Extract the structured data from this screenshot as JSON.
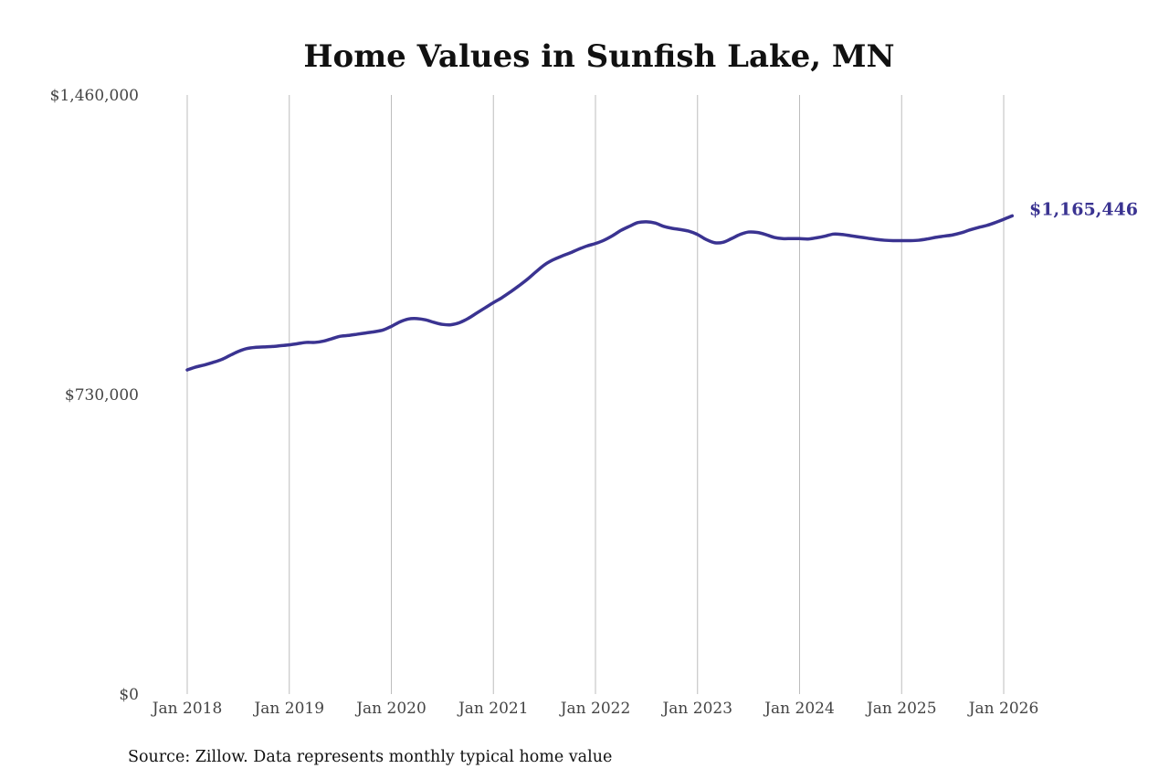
{
  "chart_data": {
    "type": "line",
    "title": "Home Values in Sunfish Lake, MN",
    "xlabel": "",
    "ylabel": "",
    "source": "Source: Zillow. Data represents monthly typical home value",
    "x_ticks": [
      "Jan 2018",
      "Jan 2019",
      "Jan 2020",
      "Jan 2021",
      "Jan 2022",
      "Jan 2023",
      "Jan 2024",
      "Jan 2025",
      "Jan 2026"
    ],
    "x_range": [
      "2018-01",
      "2026-01"
    ],
    "y_ticks": [
      0,
      730000,
      1460000
    ],
    "y_tick_labels": [
      "$0",
      "$730,000",
      "$1,460,000"
    ],
    "ylim": [
      0,
      1460000
    ],
    "grid": "vertical",
    "line_color": "#3a3391",
    "end_label": "$1,165,446",
    "series": [
      {
        "points": [
          [
            "2018-01",
            790000
          ],
          [
            "2018-02",
            797000
          ],
          [
            "2018-03",
            802000
          ],
          [
            "2018-04",
            808000
          ],
          [
            "2018-05",
            815000
          ],
          [
            "2018-06",
            825000
          ],
          [
            "2018-07",
            835000
          ],
          [
            "2018-08",
            842000
          ],
          [
            "2018-09",
            845000
          ],
          [
            "2018-10",
            846000
          ],
          [
            "2018-11",
            847000
          ],
          [
            "2018-12",
            849000
          ],
          [
            "2019-01",
            851000
          ],
          [
            "2019-02",
            854000
          ],
          [
            "2019-03",
            857000
          ],
          [
            "2019-04",
            857000
          ],
          [
            "2019-05",
            860000
          ],
          [
            "2019-06",
            866000
          ],
          [
            "2019-07",
            872000
          ],
          [
            "2019-08",
            874000
          ],
          [
            "2019-09",
            877000
          ],
          [
            "2019-10",
            880000
          ],
          [
            "2019-11",
            883000
          ],
          [
            "2019-12",
            887000
          ],
          [
            "2020-01",
            896000
          ],
          [
            "2020-02",
            907000
          ],
          [
            "2020-03",
            914000
          ],
          [
            "2020-04",
            915000
          ],
          [
            "2020-05",
            912000
          ],
          [
            "2020-06",
            906000
          ],
          [
            "2020-07",
            901000
          ],
          [
            "2020-08",
            900000
          ],
          [
            "2020-09",
            905000
          ],
          [
            "2020-10",
            915000
          ],
          [
            "2020-11",
            928000
          ],
          [
            "2020-12",
            941000
          ],
          [
            "2021-01",
            954000
          ],
          [
            "2021-02",
            966000
          ],
          [
            "2021-03",
            980000
          ],
          [
            "2021-04",
            995000
          ],
          [
            "2021-05",
            1011000
          ],
          [
            "2021-06",
            1029000
          ],
          [
            "2021-07",
            1046000
          ],
          [
            "2021-08",
            1058000
          ],
          [
            "2021-09",
            1067000
          ],
          [
            "2021-10",
            1075000
          ],
          [
            "2021-11",
            1084000
          ],
          [
            "2021-12",
            1092000
          ],
          [
            "2022-01",
            1098000
          ],
          [
            "2022-02",
            1106000
          ],
          [
            "2022-03",
            1117000
          ],
          [
            "2022-04",
            1130000
          ],
          [
            "2022-05",
            1140000
          ],
          [
            "2022-06",
            1149000
          ],
          [
            "2022-07",
            1151000
          ],
          [
            "2022-08",
            1148000
          ],
          [
            "2022-09",
            1140000
          ],
          [
            "2022-10",
            1135000
          ],
          [
            "2022-11",
            1132000
          ],
          [
            "2022-12",
            1128000
          ],
          [
            "2023-01",
            1120000
          ],
          [
            "2023-02",
            1108000
          ],
          [
            "2023-03",
            1100000
          ],
          [
            "2023-04",
            1101000
          ],
          [
            "2023-05",
            1110000
          ],
          [
            "2023-06",
            1120000
          ],
          [
            "2023-07",
            1126000
          ],
          [
            "2023-08",
            1125000
          ],
          [
            "2023-09",
            1120000
          ],
          [
            "2023-10",
            1113000
          ],
          [
            "2023-11",
            1110000
          ],
          [
            "2023-12",
            1110000
          ],
          [
            "2024-01",
            1110000
          ],
          [
            "2024-02",
            1109000
          ],
          [
            "2024-03",
            1112000
          ],
          [
            "2024-04",
            1116000
          ],
          [
            "2024-05",
            1121000
          ],
          [
            "2024-06",
            1120000
          ],
          [
            "2024-07",
            1117000
          ],
          [
            "2024-08",
            1114000
          ],
          [
            "2024-09",
            1111000
          ],
          [
            "2024-10",
            1108000
          ],
          [
            "2024-11",
            1106000
          ],
          [
            "2024-12",
            1105000
          ],
          [
            "2025-01",
            1105000
          ],
          [
            "2025-02",
            1105000
          ],
          [
            "2025-03",
            1106000
          ],
          [
            "2025-04",
            1109000
          ],
          [
            "2025-05",
            1113000
          ],
          [
            "2025-06",
            1116000
          ],
          [
            "2025-07",
            1119000
          ],
          [
            "2025-08",
            1124000
          ],
          [
            "2025-09",
            1131000
          ],
          [
            "2025-10",
            1137000
          ],
          [
            "2025-11",
            1142000
          ],
          [
            "2025-12",
            1149000
          ],
          [
            "2026-01",
            1157000
          ],
          [
            "2026-02",
            1165446
          ]
        ]
      }
    ]
  }
}
